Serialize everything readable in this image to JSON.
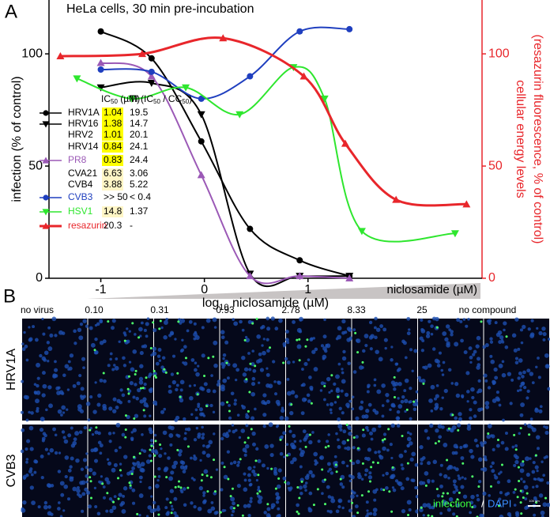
{
  "panel_a": {
    "label": "A"
  },
  "panel_b": {
    "label": "B",
    "gradient_label": "niclosamide (µM)",
    "columns": [
      "no virus",
      "0.10",
      "0.31",
      "0.93",
      "2.78",
      "8.33",
      "25",
      "no compound"
    ],
    "rows": [
      "HRV1A",
      "CVB3"
    ],
    "stain_infection": "infection",
    "stain_sep": "/",
    "stain_dapi": "DAPI",
    "scale_bar": "100 µm"
  },
  "chart_data": {
    "type": "scatter",
    "title": "HeLa cells, 30 min pre-incubation",
    "x_label": {
      "prefix": "log",
      "sub": "10",
      "rest": " niclosamide (µM)"
    },
    "y_label": "infection (% of control)",
    "y2_label": [
      "cellular energy levels",
      "(resazurin fluorescence, % of control)"
    ],
    "y2_color": "#e8262b",
    "xlim": [
      -1.5,
      2.68
    ],
    "xticks": [
      -1,
      0,
      1
    ],
    "ylim": [
      0,
      124
    ],
    "yticks": [
      0,
      50,
      100
    ],
    "y2lim": [
      0,
      124
    ],
    "y2ticks": [
      0,
      50,
      100
    ],
    "series": [
      {
        "name": "HRV1A",
        "color": "#000000",
        "marker": "circle",
        "x": [
          -1,
          -0.51,
          -0.03,
          0.44,
          0.92,
          1.4
        ],
        "values": [
          110,
          98,
          61,
          22,
          8,
          1
        ]
      },
      {
        "name": "HRV16",
        "color": "#000000",
        "marker": "down",
        "x": [
          -1,
          -0.51,
          -0.03,
          0.44,
          0.92,
          1.4
        ],
        "values": [
          85,
          87,
          73,
          2,
          1,
          1
        ]
      },
      {
        "name": "PR8",
        "color": "#9b59b6",
        "marker": "up",
        "x": [
          -1,
          -0.51,
          -0.03,
          0.44,
          0.92,
          1.4
        ],
        "values": [
          96,
          90,
          46,
          1,
          1,
          0
        ]
      },
      {
        "name": "CVB3",
        "color": "#1f3fbf",
        "marker": "circle",
        "x": [
          -1,
          -0.51,
          -0.03,
          0.44,
          0.92,
          1.4
        ],
        "values": [
          93,
          92,
          80,
          90,
          110,
          111
        ]
      },
      {
        "name": "HSV1",
        "color": "#2ee62e",
        "marker": "down",
        "x": [
          -1.23,
          -0.7,
          -0.18,
          0.34,
          0.86,
          1.16,
          1.52,
          2.42
        ],
        "values": [
          89,
          80,
          85,
          73,
          94,
          80,
          21,
          20
        ]
      },
      {
        "name": "resazurin",
        "color": "#e8262b",
        "marker": "up",
        "axis": "y2",
        "x": [
          -1.39,
          -0.6,
          0.18,
          0.96,
          1.36,
          1.85,
          2.53
        ],
        "values": [
          99,
          100,
          107,
          90,
          60,
          35,
          33
        ]
      }
    ],
    "legend": {
      "header_ic": {
        "prefix": "IC",
        "sub": "50",
        "rest": " (µM)"
      },
      "header_ti": {
        "prefix": "TI (IC",
        "sub1": "50",
        "mid": " / CC",
        "sub2": "50",
        "rest": ")"
      },
      "rows": [
        {
          "name": "HRV1A",
          "ic50": "1.04",
          "ti": "19.5",
          "color": "#000000",
          "marker": "circle",
          "highlight": "#ffff00"
        },
        {
          "name": "HRV16",
          "ic50": "1.38",
          "ti": "14.7",
          "color": "#000000",
          "marker": "down",
          "highlight": "#ffff00"
        },
        {
          "name": "HRV2",
          "ic50": "1.01",
          "ti": "20.1",
          "color": "#000000",
          "highlight": "#ffff00"
        },
        {
          "name": "HRV14",
          "ic50": "0.84",
          "ti": "24.1",
          "color": "#000000",
          "highlight": "#ffff00"
        },
        {
          "name": "PR8",
          "ic50": "0.83",
          "ti": "24.4",
          "color": "#9b59b6",
          "marker": "up",
          "highlight": "#ffff00"
        },
        {
          "name": "CVA21",
          "ic50": "6.63",
          "ti": "3.06",
          "color": "#000000",
          "highlight": "#fff6c6"
        },
        {
          "name": "CVB4",
          "ic50": "3.88",
          "ti": "5.22",
          "color": "#000000",
          "highlight": "#fff6c6"
        },
        {
          "name": "CVB3",
          "ic50": ">> 50",
          "ti": "< 0.4",
          "color": "#1f3fbf",
          "marker": "circle"
        },
        {
          "name": "HSV1",
          "ic50": "14.8",
          "ti": "1.37",
          "color": "#2ee62e",
          "marker": "down",
          "highlight": "#fff6c6"
        },
        {
          "name": "resazurin",
          "ic50": "20.3",
          "ti": "-",
          "color": "#e8262b",
          "marker": "up"
        }
      ]
    }
  }
}
